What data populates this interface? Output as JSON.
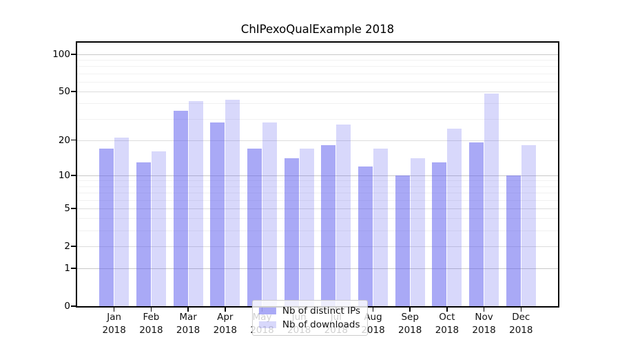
{
  "title": "ChIPexoQualExample 2018",
  "chart_data": {
    "type": "bar",
    "title": "ChIPexoQualExample 2018",
    "categories": [
      "Jan",
      "Feb",
      "Mar",
      "Apr",
      "May",
      "Jun",
      "Jul",
      "Aug",
      "Sep",
      "Oct",
      "Nov",
      "Dec"
    ],
    "year": "2018",
    "series": [
      {
        "name": "Nb of distinct IPs",
        "color": "rgba(90,90,237,0.52)",
        "values": [
          17,
          13,
          35,
          28,
          17,
          14,
          18,
          12,
          10,
          13,
          19,
          10
        ]
      },
      {
        "name": "Nb of downloads",
        "color": "rgba(90,90,237,0.24)",
        "values": [
          21,
          16,
          42,
          43,
          28,
          17,
          27,
          17,
          14,
          25,
          48,
          18
        ]
      }
    ],
    "xlabel": "",
    "ylabel": "",
    "y_scale": "log10(1+y)",
    "ylim": [
      0,
      124
    ],
    "y_ticks": [
      0,
      1,
      2,
      5,
      10,
      20,
      50,
      100
    ],
    "grid": true,
    "gridlines": {
      "strong": [
        1,
        10,
        100
      ],
      "major": [
        2,
        5,
        20,
        50
      ],
      "minor": [
        3,
        4,
        6,
        7,
        8,
        9,
        30,
        40,
        60,
        70,
        80,
        90
      ]
    },
    "legend_position": "lower center"
  },
  "style": {
    "background": "#ffffff",
    "axis_color": "#000000",
    "grid_strong": "#c8c8c8",
    "grid_major": "#dcdcdc",
    "grid_minor": "#f1f1f1",
    "bar_ips": "rgba(90,90,237,0.52)",
    "bar_downloads": "rgba(90,90,237,0.24)"
  }
}
